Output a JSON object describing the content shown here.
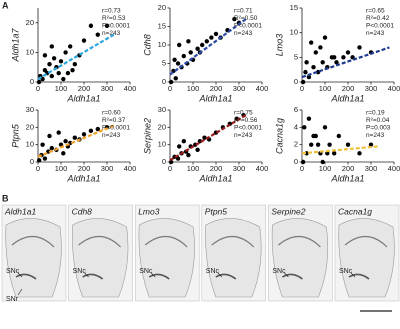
{
  "panel_a": {
    "label": "A"
  },
  "chart_data": [
    {
      "type": "scatter",
      "ylabel": "Aldh1a7",
      "xlabel": "Aldh1a1",
      "xlim": [
        0,
        400
      ],
      "xticks": [
        0,
        100,
        200,
        300,
        400
      ],
      "ylim": [
        0,
        25
      ],
      "yticks": [
        0,
        10,
        20
      ],
      "color": "#000000",
      "x": [
        5,
        10,
        20,
        30,
        40,
        50,
        60,
        70,
        80,
        90,
        100,
        120,
        140,
        160,
        180,
        200,
        230,
        260,
        300,
        150,
        110,
        60,
        30,
        130
      ],
      "values": [
        0,
        2,
        1,
        4,
        3,
        6,
        2,
        8,
        5,
        3,
        7,
        10,
        12,
        6,
        9,
        14,
        19,
        16,
        19,
        4,
        1,
        12,
        9,
        3
      ],
      "fit": {
        "x": [
          0,
          330
        ],
        "values": [
          1,
          16
        ],
        "color": "#2aa6e0",
        "style": "dashed"
      },
      "stats": [
        "r=0.73",
        "R²=0.53",
        "P<0.0001",
        "n=243"
      ]
    },
    {
      "type": "scatter",
      "ylabel": "Cdh8",
      "xlabel": "Aldh1a1",
      "xlim": [
        0,
        400
      ],
      "xticks": [
        0,
        100,
        200,
        300,
        400
      ],
      "ylim": [
        0,
        20
      ],
      "yticks": [
        0,
        5,
        10,
        15,
        20
      ],
      "color": "#000000",
      "x": [
        5,
        15,
        25,
        35,
        50,
        60,
        75,
        90,
        100,
        120,
        140,
        160,
        180,
        200,
        220,
        250,
        280,
        300,
        40,
        80,
        130,
        20
      ],
      "values": [
        0,
        3,
        1,
        5,
        4,
        7,
        5,
        8,
        6,
        9,
        10,
        11,
        12,
        13,
        12,
        14,
        17,
        16,
        10,
        11,
        8,
        6
      ],
      "fit": {
        "x": [
          0,
          330
        ],
        "values": [
          2,
          17
        ],
        "color": "#2e4aa8",
        "style": "dashed"
      },
      "stats": [
        "r=0.71",
        "R²=0.50",
        "P<0.0001",
        "n=243"
      ]
    },
    {
      "type": "scatter",
      "ylabel": "Lmo3",
      "xlabel": "Aldh1a1",
      "xlim": [
        0,
        400
      ],
      "xticks": [
        0,
        100,
        200,
        300,
        400
      ],
      "ylim": [
        0,
        15
      ],
      "yticks": [
        0,
        5,
        10,
        15
      ],
      "color": "#000000",
      "x": [
        5,
        15,
        30,
        50,
        70,
        90,
        110,
        130,
        150,
        180,
        200,
        220,
        250,
        300,
        40,
        60,
        100,
        140,
        20,
        80
      ],
      "values": [
        0,
        2,
        1,
        3,
        2,
        4,
        3,
        5,
        4,
        5,
        6,
        5,
        7,
        6,
        8,
        6,
        9,
        5,
        4,
        7
      ],
      "fit": {
        "x": [
          0,
          380
        ],
        "values": [
          1,
          7
        ],
        "color": "#1f3b8f",
        "style": "dashed"
      },
      "stats": [
        "r=0.65",
        "R²=0.42",
        "P<0.0001",
        "n=243"
      ]
    },
    {
      "type": "scatter",
      "ylabel": "Ptpn5",
      "xlabel": "Aldh1a1",
      "xlim": [
        0,
        400
      ],
      "xticks": [
        0,
        100,
        200,
        300,
        400
      ],
      "ylim": [
        0,
        30
      ],
      "yticks": [
        0,
        10,
        20,
        30
      ],
      "color": "#000000",
      "x": [
        5,
        15,
        30,
        45,
        60,
        80,
        100,
        120,
        140,
        160,
        180,
        200,
        230,
        260,
        300,
        50,
        90,
        130,
        20,
        110
      ],
      "values": [
        1,
        4,
        2,
        6,
        8,
        7,
        10,
        12,
        11,
        14,
        13,
        16,
        18,
        19,
        20,
        15,
        17,
        9,
        10,
        5
      ],
      "fit": {
        "x": [
          0,
          330
        ],
        "values": [
          3,
          21
        ],
        "color": "#f2a32a",
        "style": "dashed"
      },
      "stats": [
        "r=0.60",
        "R²=0.37",
        "P<0.0001",
        "n=243"
      ]
    },
    {
      "type": "scatter",
      "ylabel": "Serpine2",
      "xlabel": "Aldh1a1",
      "xlim": [
        0,
        400
      ],
      "xticks": [
        0,
        100,
        200,
        300,
        400
      ],
      "ylim": [
        0,
        30
      ],
      "yticks": [
        0,
        10,
        20,
        30
      ],
      "color": "#000000",
      "x": [
        5,
        20,
        35,
        50,
        70,
        90,
        110,
        130,
        150,
        170,
        200,
        230,
        260,
        290,
        320,
        40,
        80,
        120,
        60
      ],
      "values": [
        0,
        3,
        2,
        5,
        6,
        9,
        10,
        12,
        14,
        13,
        17,
        20,
        22,
        25,
        27,
        9,
        4,
        7,
        12
      ],
      "fit": {
        "x": [
          0,
          330
        ],
        "values": [
          1,
          27
        ],
        "color": "#9b1c1c",
        "style": "dashed"
      },
      "stats": [
        "r=0.75",
        "R²=0.56",
        "P<0.0001",
        "n=243"
      ]
    },
    {
      "type": "scatter",
      "ylabel": "Cacna1g",
      "xlabel": "Aldh1a1",
      "xlim": [
        0,
        400
      ],
      "xticks": [
        0,
        100,
        200,
        300,
        400
      ],
      "ylim": [
        0,
        6
      ],
      "yticks": [
        0,
        2,
        4,
        6
      ],
      "color": "#000000",
      "x": [
        5,
        20,
        40,
        60,
        80,
        100,
        120,
        140,
        160,
        200,
        250,
        300,
        30,
        50,
        90,
        110,
        70,
        10
      ],
      "values": [
        0,
        1,
        2,
        3,
        1,
        4,
        2,
        1,
        3,
        2,
        1,
        2,
        5,
        3,
        0,
        1,
        2,
        4
      ],
      "fit": {
        "x": [
          0,
          330
        ],
        "values": [
          1,
          1.8
        ],
        "color": "#f0c23a",
        "style": "dashed"
      },
      "stats": [
        "r=0.19",
        "R²=0.04",
        "P=0.003",
        "n=243"
      ]
    }
  ],
  "panel_b": {
    "label": "B",
    "images": [
      {
        "title": "Aldh1a1",
        "annotations": [
          "SNc",
          "SNr"
        ]
      },
      {
        "title": "Cdh8",
        "annotations": [
          "SNc"
        ]
      },
      {
        "title": "Lmo3",
        "annotations": [
          "SNc"
        ]
      },
      {
        "title": "Ptpn5",
        "annotations": [
          "SNc"
        ]
      },
      {
        "title": "Serpine2",
        "annotations": [
          "SNc"
        ]
      },
      {
        "title": "Cacna1g",
        "annotations": [
          "SNc"
        ]
      }
    ]
  }
}
